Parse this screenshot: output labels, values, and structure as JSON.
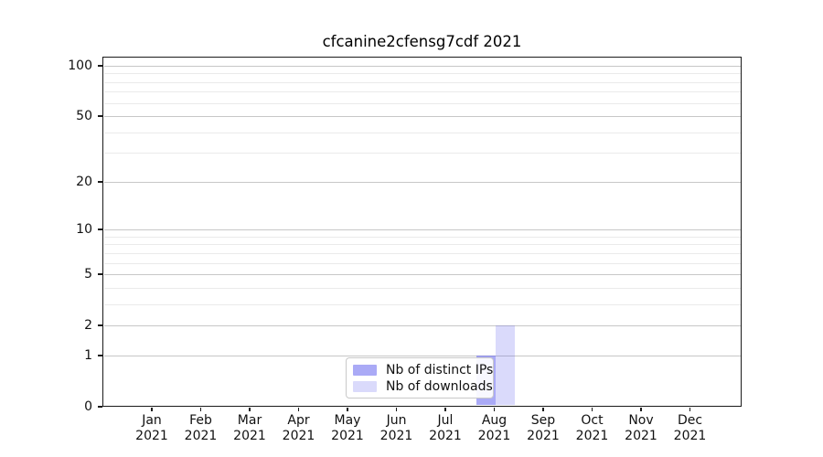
{
  "chart_data": {
    "type": "bar",
    "title": "cfcanine2cfensg7cdf 2021",
    "x_categories": [
      "Jan",
      "Feb",
      "Mar",
      "Apr",
      "May",
      "Jun",
      "Jul",
      "Aug",
      "Sep",
      "Oct",
      "Nov",
      "Dec"
    ],
    "x_year": "2021",
    "series": [
      {
        "name": "Nb of distinct IPs",
        "color": "rgba(85,85,237,0.50)",
        "values": [
          0,
          0,
          0,
          0,
          0,
          0,
          0,
          1,
          0,
          0,
          0,
          0
        ]
      },
      {
        "name": "Nb of downloads",
        "color": "rgba(85,85,237,0.22)",
        "values": [
          0,
          0,
          0,
          0,
          0,
          0,
          0,
          2,
          0,
          0,
          0,
          0
        ]
      }
    ],
    "y_scale": "log1p",
    "y_max": 113,
    "y_ticks": [
      0,
      1,
      2,
      5,
      10,
      20,
      50,
      100
    ],
    "y_minor_ticks": [
      3,
      4,
      6,
      7,
      8,
      9,
      30,
      40,
      60,
      70,
      80,
      90
    ],
    "grid": "horizontal-only",
    "legend_entries": [
      "Nb of distinct IPs",
      "Nb of downloads"
    ]
  }
}
